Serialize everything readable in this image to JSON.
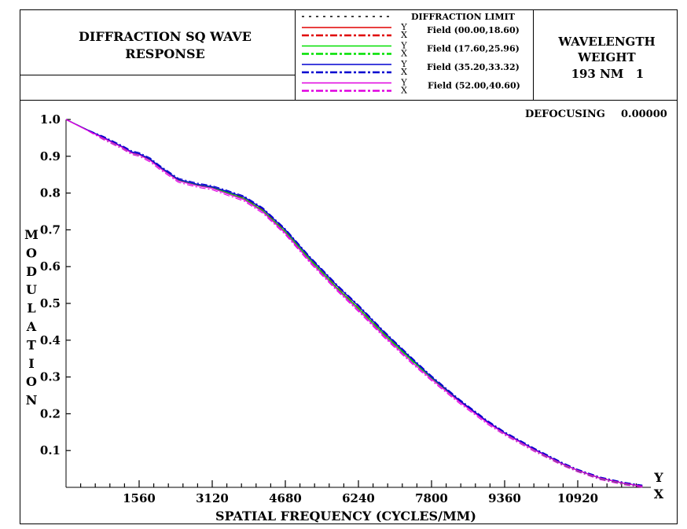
{
  "header": {
    "title_line1": "DIFFRACTION SQ WAVE",
    "title_line2": "RESPONSE",
    "wavelength_label": "WAVELENGTH",
    "weight_label": "WEIGHT",
    "wavelength_value": "193 NM",
    "weight_value": "1",
    "defocusing_label": "DEFOCUSING",
    "defocusing_value": "0.00000",
    "y_marker": "Y",
    "x_marker": "X"
  },
  "legend": {
    "diffraction_limit": "DIFFRACTION LIMIT",
    "fields": [
      {
        "label": "Field (00.00,18.60)",
        "color": "#e00000"
      },
      {
        "label": "Field (17.60,25.96)",
        "color": "#00e000"
      },
      {
        "label": "Field (35.20,33.32)",
        "color": "#0000d0"
      },
      {
        "label": "Field (52.00,40.60)",
        "color": "#e000e0"
      }
    ]
  },
  "chart_data": {
    "type": "line",
    "xlabel": "SPATIAL FREQUENCY (CYCLES/MM)",
    "ylabel": "MODULATION",
    "xlim": [
      0,
      12480
    ],
    "ylim": [
      0,
      1.0
    ],
    "xticks": [
      "1560",
      "3120",
      "4680",
      "6240",
      "7800",
      "9360",
      "10920"
    ],
    "yticks": [
      "0.1",
      "0.2",
      "0.3",
      "0.4",
      "0.5",
      "0.6",
      "0.7",
      "0.8",
      "0.9",
      "1.0"
    ],
    "x": [
      0,
      400,
      800,
      1200,
      1400,
      1560,
      1800,
      2000,
      2400,
      2800,
      3120,
      3400,
      3800,
      4200,
      4680,
      5200,
      5800,
      6240,
      6800,
      7400,
      7800,
      8400,
      9000,
      9360,
      10000,
      10600,
      10920,
      11400,
      11900,
      12300
    ],
    "series": [
      {
        "name": "DIFFRACTION LIMIT",
        "values": [
          1.0,
          0.975,
          0.95,
          0.925,
          0.91,
          0.905,
          0.89,
          0.87,
          0.835,
          0.822,
          0.815,
          0.803,
          0.785,
          0.752,
          0.695,
          0.62,
          0.54,
          0.487,
          0.415,
          0.343,
          0.298,
          0.235,
          0.177,
          0.147,
          0.102,
          0.063,
          0.046,
          0.025,
          0.011,
          0.003
        ]
      },
      {
        "name": "Field (00.00,18.60)",
        "values": [
          1.0,
          0.975,
          0.95,
          0.925,
          0.91,
          0.905,
          0.89,
          0.87,
          0.835,
          0.822,
          0.815,
          0.803,
          0.785,
          0.752,
          0.695,
          0.62,
          0.54,
          0.487,
          0.415,
          0.343,
          0.298,
          0.235,
          0.177,
          0.147,
          0.102,
          0.063,
          0.046,
          0.025,
          0.011,
          0.003
        ]
      },
      {
        "name": "Field (17.60,25.96)",
        "values": [
          1.0,
          0.975,
          0.95,
          0.925,
          0.91,
          0.905,
          0.89,
          0.87,
          0.835,
          0.822,
          0.815,
          0.803,
          0.785,
          0.752,
          0.695,
          0.62,
          0.54,
          0.487,
          0.415,
          0.343,
          0.298,
          0.235,
          0.177,
          0.147,
          0.102,
          0.063,
          0.046,
          0.025,
          0.011,
          0.003
        ]
      },
      {
        "name": "Field (35.20,33.32)",
        "values": [
          1.0,
          0.975,
          0.951,
          0.926,
          0.912,
          0.907,
          0.892,
          0.872,
          0.837,
          0.824,
          0.817,
          0.806,
          0.789,
          0.757,
          0.7,
          0.625,
          0.546,
          0.493,
          0.42,
          0.347,
          0.3,
          0.236,
          0.178,
          0.148,
          0.103,
          0.064,
          0.046,
          0.025,
          0.011,
          0.003
        ]
      },
      {
        "name": "Field (52.00,40.60)",
        "values": [
          1.0,
          0.974,
          0.949,
          0.924,
          0.909,
          0.904,
          0.888,
          0.868,
          0.833,
          0.82,
          0.813,
          0.8,
          0.782,
          0.749,
          0.691,
          0.615,
          0.536,
          0.482,
          0.41,
          0.338,
          0.294,
          0.232,
          0.175,
          0.146,
          0.101,
          0.063,
          0.046,
          0.025,
          0.011,
          0.003
        ]
      }
    ]
  }
}
